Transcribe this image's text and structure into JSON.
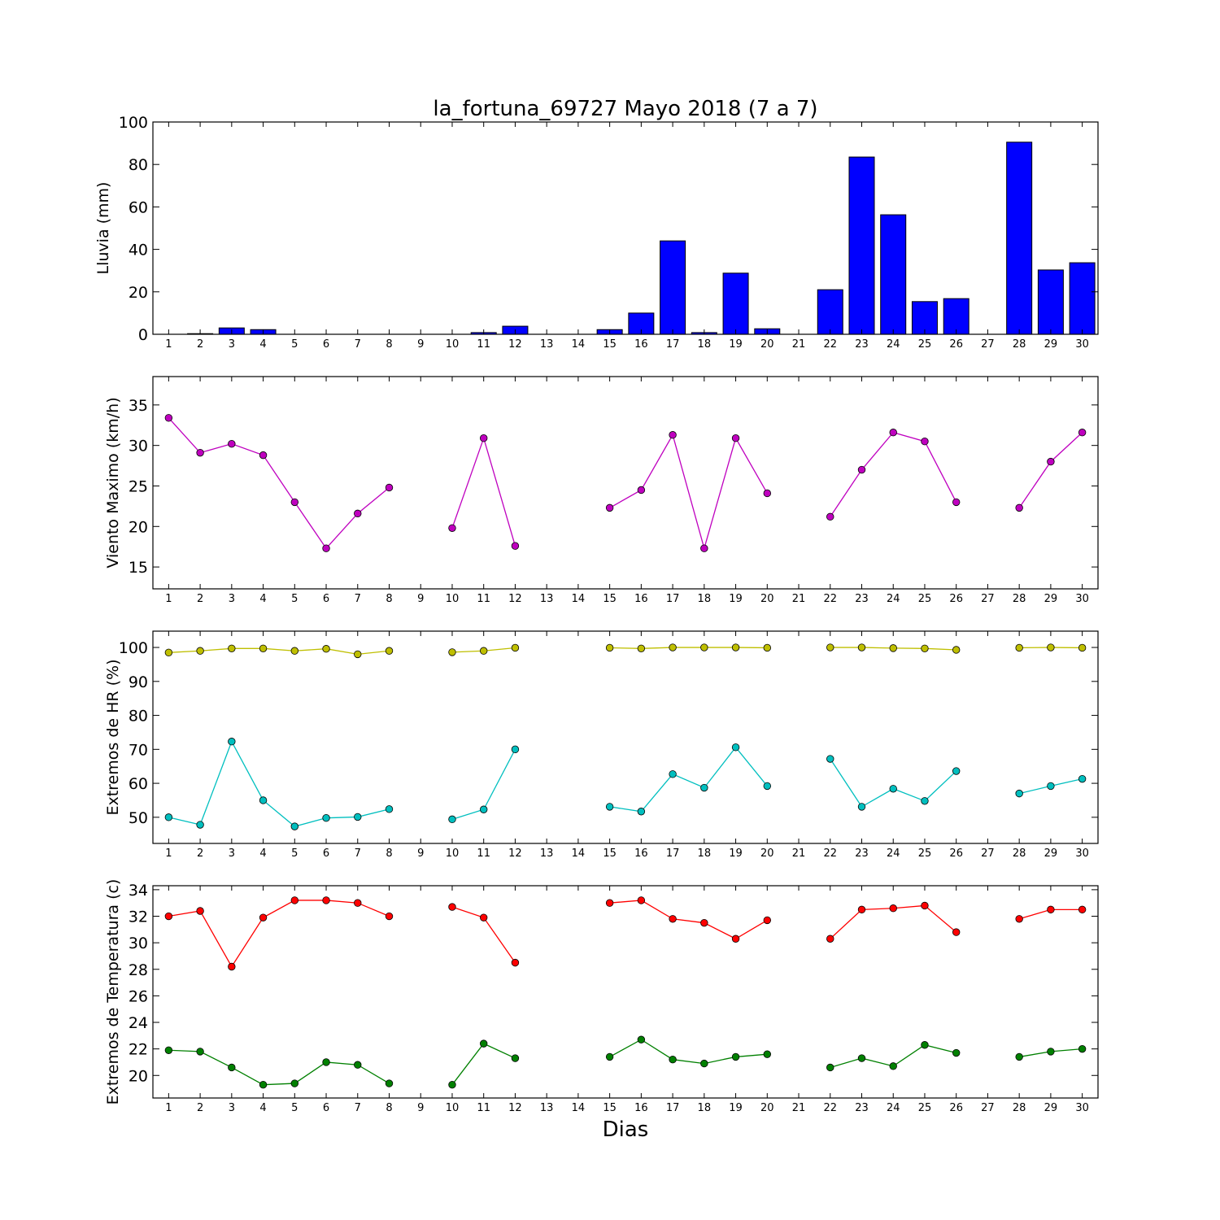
{
  "title": "la_fortuna_69727 Mayo 2018  (7 a 7)",
  "xlabel": "Dias",
  "colors": {
    "rain": "#0000ff",
    "wind": "#bf00bf",
    "hr_max": "#bfbf00",
    "hr_min": "#00bfbf",
    "temp_max": "#ff0000",
    "temp_min": "#008000"
  },
  "chart_data": [
    {
      "type": "bar",
      "id": "rain",
      "title": "la_fortuna_69727 Mayo 2018  (7 a 7)",
      "ylabel": "Lluvia (mm)",
      "xlabel": "",
      "xlim": [
        0.5,
        30.5
      ],
      "ylim": [
        0,
        100
      ],
      "yticks": [
        0,
        20,
        40,
        60,
        80,
        100
      ],
      "categories": [
        1,
        2,
        3,
        4,
        5,
        6,
        7,
        8,
        9,
        10,
        11,
        12,
        13,
        14,
        15,
        16,
        17,
        18,
        19,
        20,
        21,
        22,
        23,
        24,
        25,
        26,
        27,
        28,
        29,
        30
      ],
      "values": [
        0,
        0.3,
        3,
        2.2,
        0,
        0,
        0,
        0,
        0,
        0,
        0.8,
        3.8,
        0,
        0,
        2.2,
        10,
        44,
        0.8,
        28.8,
        2.6,
        0,
        21,
        83.5,
        56.3,
        15.4,
        16.8,
        0,
        90.5,
        30.3,
        33.7
      ]
    },
    {
      "type": "line",
      "id": "wind",
      "ylabel": "Viento Maximo (km/h)",
      "xlabel": "",
      "xlim": [
        0.5,
        30.5
      ],
      "ylim": [
        12.3,
        38.5
      ],
      "yticks": [
        15,
        20,
        25,
        30,
        35
      ],
      "x": [
        1,
        2,
        3,
        4,
        5,
        6,
        7,
        8,
        9,
        10,
        11,
        12,
        13,
        14,
        15,
        16,
        17,
        18,
        19,
        20,
        21,
        22,
        23,
        24,
        25,
        26,
        27,
        28,
        29,
        30
      ],
      "series": [
        {
          "color_key": "wind",
          "values": [
            33.4,
            29.1,
            30.2,
            28.8,
            23,
            17.3,
            21.6,
            24.8,
            null,
            19.8,
            30.9,
            17.6,
            null,
            null,
            22.3,
            24.5,
            31.3,
            17.3,
            30.9,
            24.1,
            null,
            21.2,
            27,
            31.6,
            30.5,
            23,
            null,
            22.3,
            28,
            31.6
          ]
        }
      ]
    },
    {
      "type": "line",
      "id": "hr",
      "ylabel": "Extremos de HR (%)",
      "xlabel": "",
      "xlim": [
        0.5,
        30.5
      ],
      "ylim": [
        42.3,
        104.8
      ],
      "yticks": [
        50,
        60,
        70,
        80,
        90,
        100
      ],
      "x": [
        1,
        2,
        3,
        4,
        5,
        6,
        7,
        8,
        9,
        10,
        11,
        12,
        13,
        14,
        15,
        16,
        17,
        18,
        19,
        20,
        21,
        22,
        23,
        24,
        25,
        26,
        27,
        28,
        29,
        30
      ],
      "series": [
        {
          "color_key": "hr_max",
          "values": [
            98.5,
            99,
            99.7,
            99.7,
            99,
            99.6,
            98,
            99,
            null,
            98.6,
            99,
            99.9,
            null,
            null,
            99.9,
            99.7,
            100,
            100,
            100,
            99.9,
            null,
            100,
            100,
            99.8,
            99.7,
            99.3,
            null,
            99.9,
            100,
            99.9
          ]
        },
        {
          "color_key": "hr_min",
          "values": [
            50,
            47.8,
            72.3,
            55,
            47.3,
            49.8,
            50.1,
            52.4,
            null,
            49.4,
            52.3,
            70,
            null,
            null,
            53.1,
            51.7,
            62.7,
            58.7,
            70.6,
            59.2,
            null,
            67.2,
            53.1,
            58.4,
            54.8,
            63.6,
            null,
            57,
            59.2,
            61.3
          ]
        }
      ]
    },
    {
      "type": "line",
      "id": "temp",
      "ylabel": "Extremos de Temperatura (c)",
      "xlabel": "Dias",
      "xlim": [
        0.5,
        30.5
      ],
      "ylim": [
        18.3,
        34.3
      ],
      "yticks": [
        20,
        22,
        24,
        26,
        28,
        30,
        32,
        34
      ],
      "x": [
        1,
        2,
        3,
        4,
        5,
        6,
        7,
        8,
        9,
        10,
        11,
        12,
        13,
        14,
        15,
        16,
        17,
        18,
        19,
        20,
        21,
        22,
        23,
        24,
        25,
        26,
        27,
        28,
        29,
        30
      ],
      "series": [
        {
          "color_key": "temp_max",
          "values": [
            32,
            32.4,
            28.2,
            31.9,
            33.2,
            33.2,
            33,
            32,
            null,
            32.7,
            31.9,
            28.5,
            null,
            null,
            33,
            33.2,
            31.8,
            31.5,
            30.3,
            31.7,
            null,
            30.3,
            32.5,
            32.6,
            32.8,
            30.8,
            null,
            31.8,
            32.5,
            32.5
          ]
        },
        {
          "color_key": "temp_min",
          "values": [
            21.9,
            21.8,
            20.6,
            19.3,
            19.4,
            21,
            20.8,
            19.4,
            null,
            19.3,
            22.4,
            21.3,
            null,
            null,
            21.4,
            22.7,
            21.2,
            20.9,
            21.4,
            21.6,
            null,
            20.6,
            21.3,
            20.7,
            22.3,
            21.7,
            null,
            21.4,
            21.8,
            22
          ]
        }
      ]
    }
  ]
}
